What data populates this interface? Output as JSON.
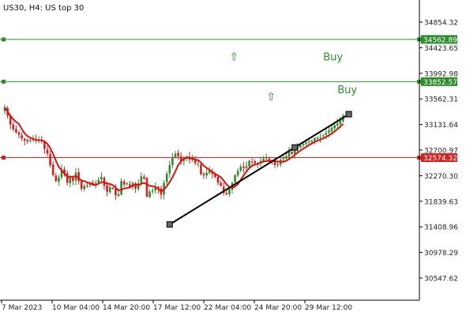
{
  "window": {
    "title": "US30, H4:  US top 30"
  },
  "colors": {
    "background": "#ffffff",
    "axis": "#000000",
    "bull_candle": "#2e8b2e",
    "bear_candle": "#cc2222",
    "moving_average": "#dd1111",
    "resistance_line": "#2e8b2e",
    "support_line": "#cc2222",
    "trendline": "#000000",
    "signal_text": "#2e8b2e"
  },
  "chart_data": {
    "type": "candlestick",
    "symbol": "US30",
    "timeframe": "H4",
    "description": "US top 30",
    "y_ticks": [
      "34854.32",
      "34423.65",
      "33992.98",
      "33562.31",
      "33131.64",
      "32700.97",
      "32270.30",
      "31839.63",
      "31408.96",
      "30978.29",
      "30547.62"
    ],
    "x_ticks": [
      "7 Mar 2023",
      "10 Mar 04:00",
      "14 Mar 20:00",
      "17 Mar 12:00",
      "22 Mar 04:00",
      "24 Mar 20:00",
      "29 Mar 12:00"
    ],
    "y_range": [
      30300,
      35050
    ],
    "horizontal_levels": [
      {
        "value": "34562.89",
        "role": "resistance",
        "color": "#2e8b2e"
      },
      {
        "value": "33852.57",
        "role": "resistance",
        "color": "#2e8b2e"
      },
      {
        "value": "32574.32",
        "role": "support",
        "color": "#cc2222"
      }
    ],
    "trendline": {
      "from": {
        "bar": 58,
        "price": 31450
      },
      "to": {
        "bar": 121,
        "price": 33305
      }
    },
    "annotations": [
      {
        "text": "Buy",
        "price": 34210,
        "bar": 112
      },
      {
        "text": "Buy",
        "price": 33660,
        "bar": 117
      },
      {
        "text": "⇧",
        "price": 34210,
        "bar": 79
      },
      {
        "text": "⇧",
        "price": 33540,
        "bar": 92
      }
    ],
    "close_series": [
      33420,
      33280,
      33130,
      33050,
      33000,
      32960,
      32900,
      32860,
      32850,
      32870,
      32890,
      32860,
      32880,
      32850,
      32720,
      32640,
      32450,
      32280,
      32180,
      32240,
      32380,
      32300,
      32150,
      32250,
      32180,
      32320,
      32180,
      32050,
      32100,
      32100,
      32150,
      32120,
      32150,
      32200,
      32250,
      32100,
      32000,
      32080,
      32050,
      31940,
      31960,
      32180,
      32120,
      32140,
      32080,
      32150,
      32050,
      32140,
      32260,
      32220,
      31920,
      32000,
      32020,
      32080,
      32050,
      31950,
      32150,
      32300,
      32450,
      32570,
      32640,
      32600,
      32520,
      32550,
      32590,
      32540,
      32560,
      32480,
      32470,
      32300,
      32280,
      32320,
      32350,
      32300,
      32250,
      32150,
      32100,
      31980,
      31960,
      32050,
      32150,
      32280,
      32350,
      32420,
      32400,
      32430,
      32520,
      32500,
      32480,
      32480,
      32520,
      32550,
      32560,
      32520,
      32500,
      32450,
      32470,
      32540,
      32560,
      32600,
      32680,
      32640,
      32700,
      32760,
      32780,
      32800,
      32830,
      32850,
      32860,
      32900,
      32910,
      32920,
      32950,
      32990,
      33030,
      33080,
      33120,
      33150,
      33200,
      33280
    ]
  }
}
